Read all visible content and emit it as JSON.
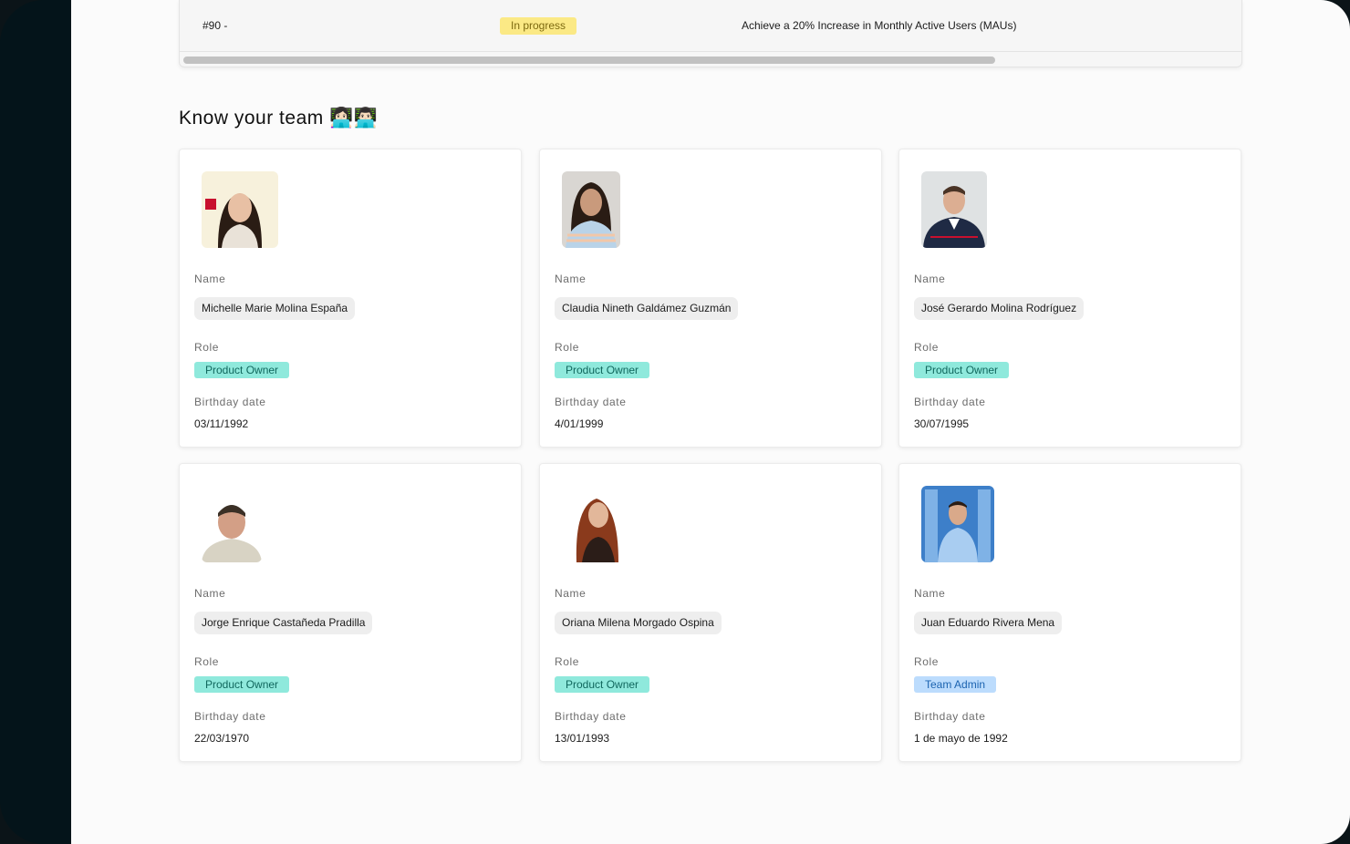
{
  "objectives_table": {
    "row": {
      "id": "#90 -",
      "status": "In progress",
      "title": "Achieve a 20% Increase in Monthly Active Users (MAUs)"
    }
  },
  "team_section": {
    "title": "Know your team 👩🏻‍💻👨🏻‍💻",
    "labels": {
      "name": "Name",
      "role": "Role",
      "birthday": "Birthday date"
    },
    "members": [
      {
        "name": "Michelle Marie Molina España",
        "role": "Product Owner",
        "birthday": "03/11/1992",
        "role_color": "#8fe9dc"
      },
      {
        "name": "Claudia Nineth Galdámez Guzmán",
        "role": "Product Owner",
        "birthday": "4/01/1999",
        "role_color": "#8fe9dc"
      },
      {
        "name": "José Gerardo Molina Rodríguez",
        "role": "Product Owner",
        "birthday": " 30/07/1995",
        "role_color": "#8fe9dc"
      },
      {
        "name": "Jorge Enrique Castañeda Pradilla",
        "role": "Product Owner",
        "birthday": "22/03/1970",
        "role_color": "#8fe9dc"
      },
      {
        "name": "Oriana Milena Morgado Ospina",
        "role": "Product Owner",
        "birthday": " 13/01/1993",
        "role_color": "#8fe9dc"
      },
      {
        "name": "Juan Eduardo Rivera Mena",
        "role": "Team Admin",
        "birthday": "1 de mayo de 1992",
        "role_color": "#bcdcfd"
      }
    ]
  },
  "colors": {
    "sidebar": "#04141a",
    "background": "#fbfbfb",
    "status_in_progress": "#fbe985",
    "role_product_owner": "#8fe9dc",
    "role_team_admin": "#bcdcfd"
  }
}
